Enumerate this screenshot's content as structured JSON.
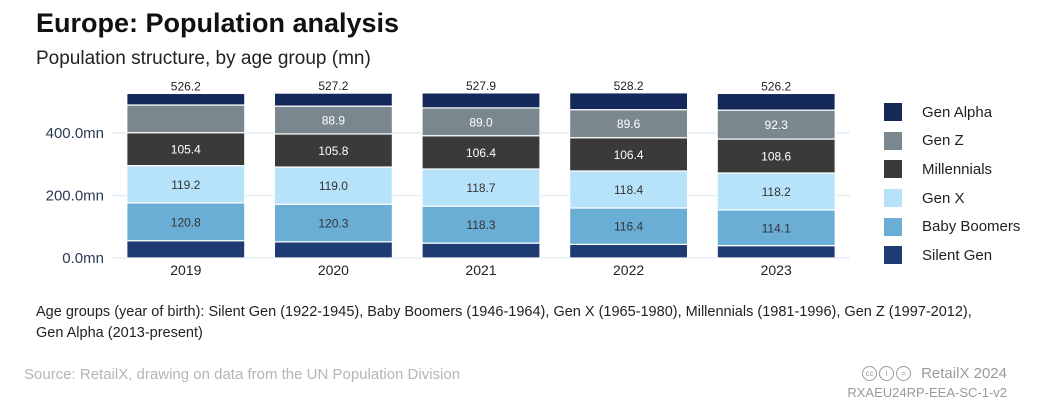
{
  "header": {
    "title": "Europe: Population analysis",
    "subtitle": "Population structure, by age group (mn)"
  },
  "chart_data": {
    "type": "bar",
    "stacked": true,
    "categories": [
      "2019",
      "2020",
      "2021",
      "2022",
      "2023"
    ],
    "ylim": [
      0,
      550
    ],
    "yticks": [
      {
        "value": 0,
        "label": "0.0mn"
      },
      {
        "value": 200,
        "label": "200.0mn"
      },
      {
        "value": 400,
        "label": "400.0mn"
      }
    ],
    "grid": true,
    "legend_position": "right",
    "series": [
      {
        "name": "Silent Gen",
        "color": "#1f3b73",
        "values": [
          55.3,
          51.6,
          47.6,
          43.5,
          39.6
        ],
        "labels": [
          "",
          "",
          "",
          "",
          ""
        ]
      },
      {
        "name": "Baby Boomers",
        "color": "#6aaed6",
        "values": [
          120.8,
          120.3,
          118.3,
          116.4,
          114.1
        ],
        "labels": [
          "120.8",
          "120.3",
          "118.3",
          "116.4",
          "114.1"
        ]
      },
      {
        "name": "Gen X",
        "color": "#b7e3fa",
        "values": [
          119.2,
          119.0,
          118.7,
          118.4,
          118.2
        ],
        "labels": [
          "119.2",
          "119.0",
          "118.7",
          "118.4",
          "118.2"
        ]
      },
      {
        "name": "Millennials",
        "color": "#3a3a3a",
        "values": [
          105.4,
          105.8,
          106.4,
          106.4,
          108.6
        ],
        "labels": [
          "105.4",
          "105.8",
          "106.4",
          "106.4",
          "108.6"
        ]
      },
      {
        "name": "Gen Z",
        "color": "#7a878e",
        "values": [
          88.5,
          88.9,
          89.0,
          89.6,
          92.3
        ],
        "labels": [
          "",
          "88.9",
          "89.0",
          "89.6",
          "92.3"
        ]
      },
      {
        "name": "Gen Alpha",
        "color": "#14285a",
        "values": [
          37.0,
          41.6,
          47.9,
          53.9,
          53.4
        ],
        "labels": [
          "",
          "",
          "",
          "",
          ""
        ]
      }
    ],
    "totals": [
      "526.2",
      "527.2",
      "527.9",
      "528.2",
      "526.2"
    ]
  },
  "note": "Age groups (year of birth): Silent Gen (1922-1945), Baby Boomers (1946-1964), Gen X (1965-1980), Millennials (1981-1996), Gen Z (1997-2012), Gen Alpha (2013-present)",
  "footer": {
    "source": "Source: RetailX, drawing on data from the UN Population Division",
    "brand": "RetailX 2024",
    "code": "RXAEU24RP-EEA-SC-1-v2",
    "license_icon": "cc-by-nd-icon"
  }
}
